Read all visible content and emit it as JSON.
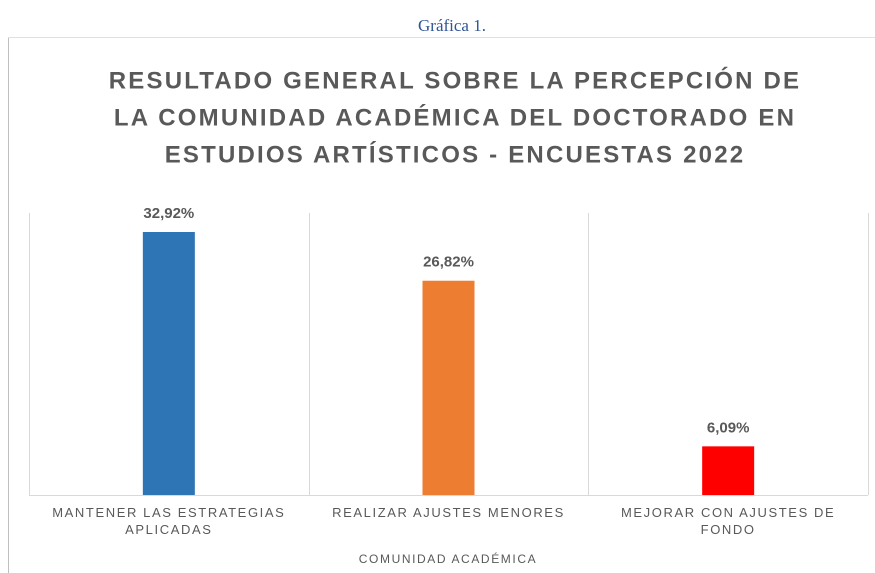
{
  "caption": "Gráfica 1.",
  "chart_data": {
    "type": "bar",
    "title": [
      "RESULTADO GENERAL SOBRE LA PERCEPCIÓN DE",
      "LA COMUNIDAD ACADÉMICA DEL DOCTORADO EN",
      "ESTUDIOS ARTÍSTICOS - ENCUESTAS 2022"
    ],
    "x_label": "COMUNIDAD ACADÉMICA",
    "categories": [
      "MANTENER LAS ESTRATEGIAS APLICADAS",
      "REALIZAR AJUSTES MENORES",
      "MEJORAR CON AJUSTES DE FONDO"
    ],
    "values": [
      32.92,
      26.82,
      6.09
    ],
    "value_labels": [
      "32,92%",
      "26,82%",
      "6,09%"
    ],
    "colors": [
      "#2e75b6",
      "#ed7d31",
      "#ff0000"
    ]
  }
}
